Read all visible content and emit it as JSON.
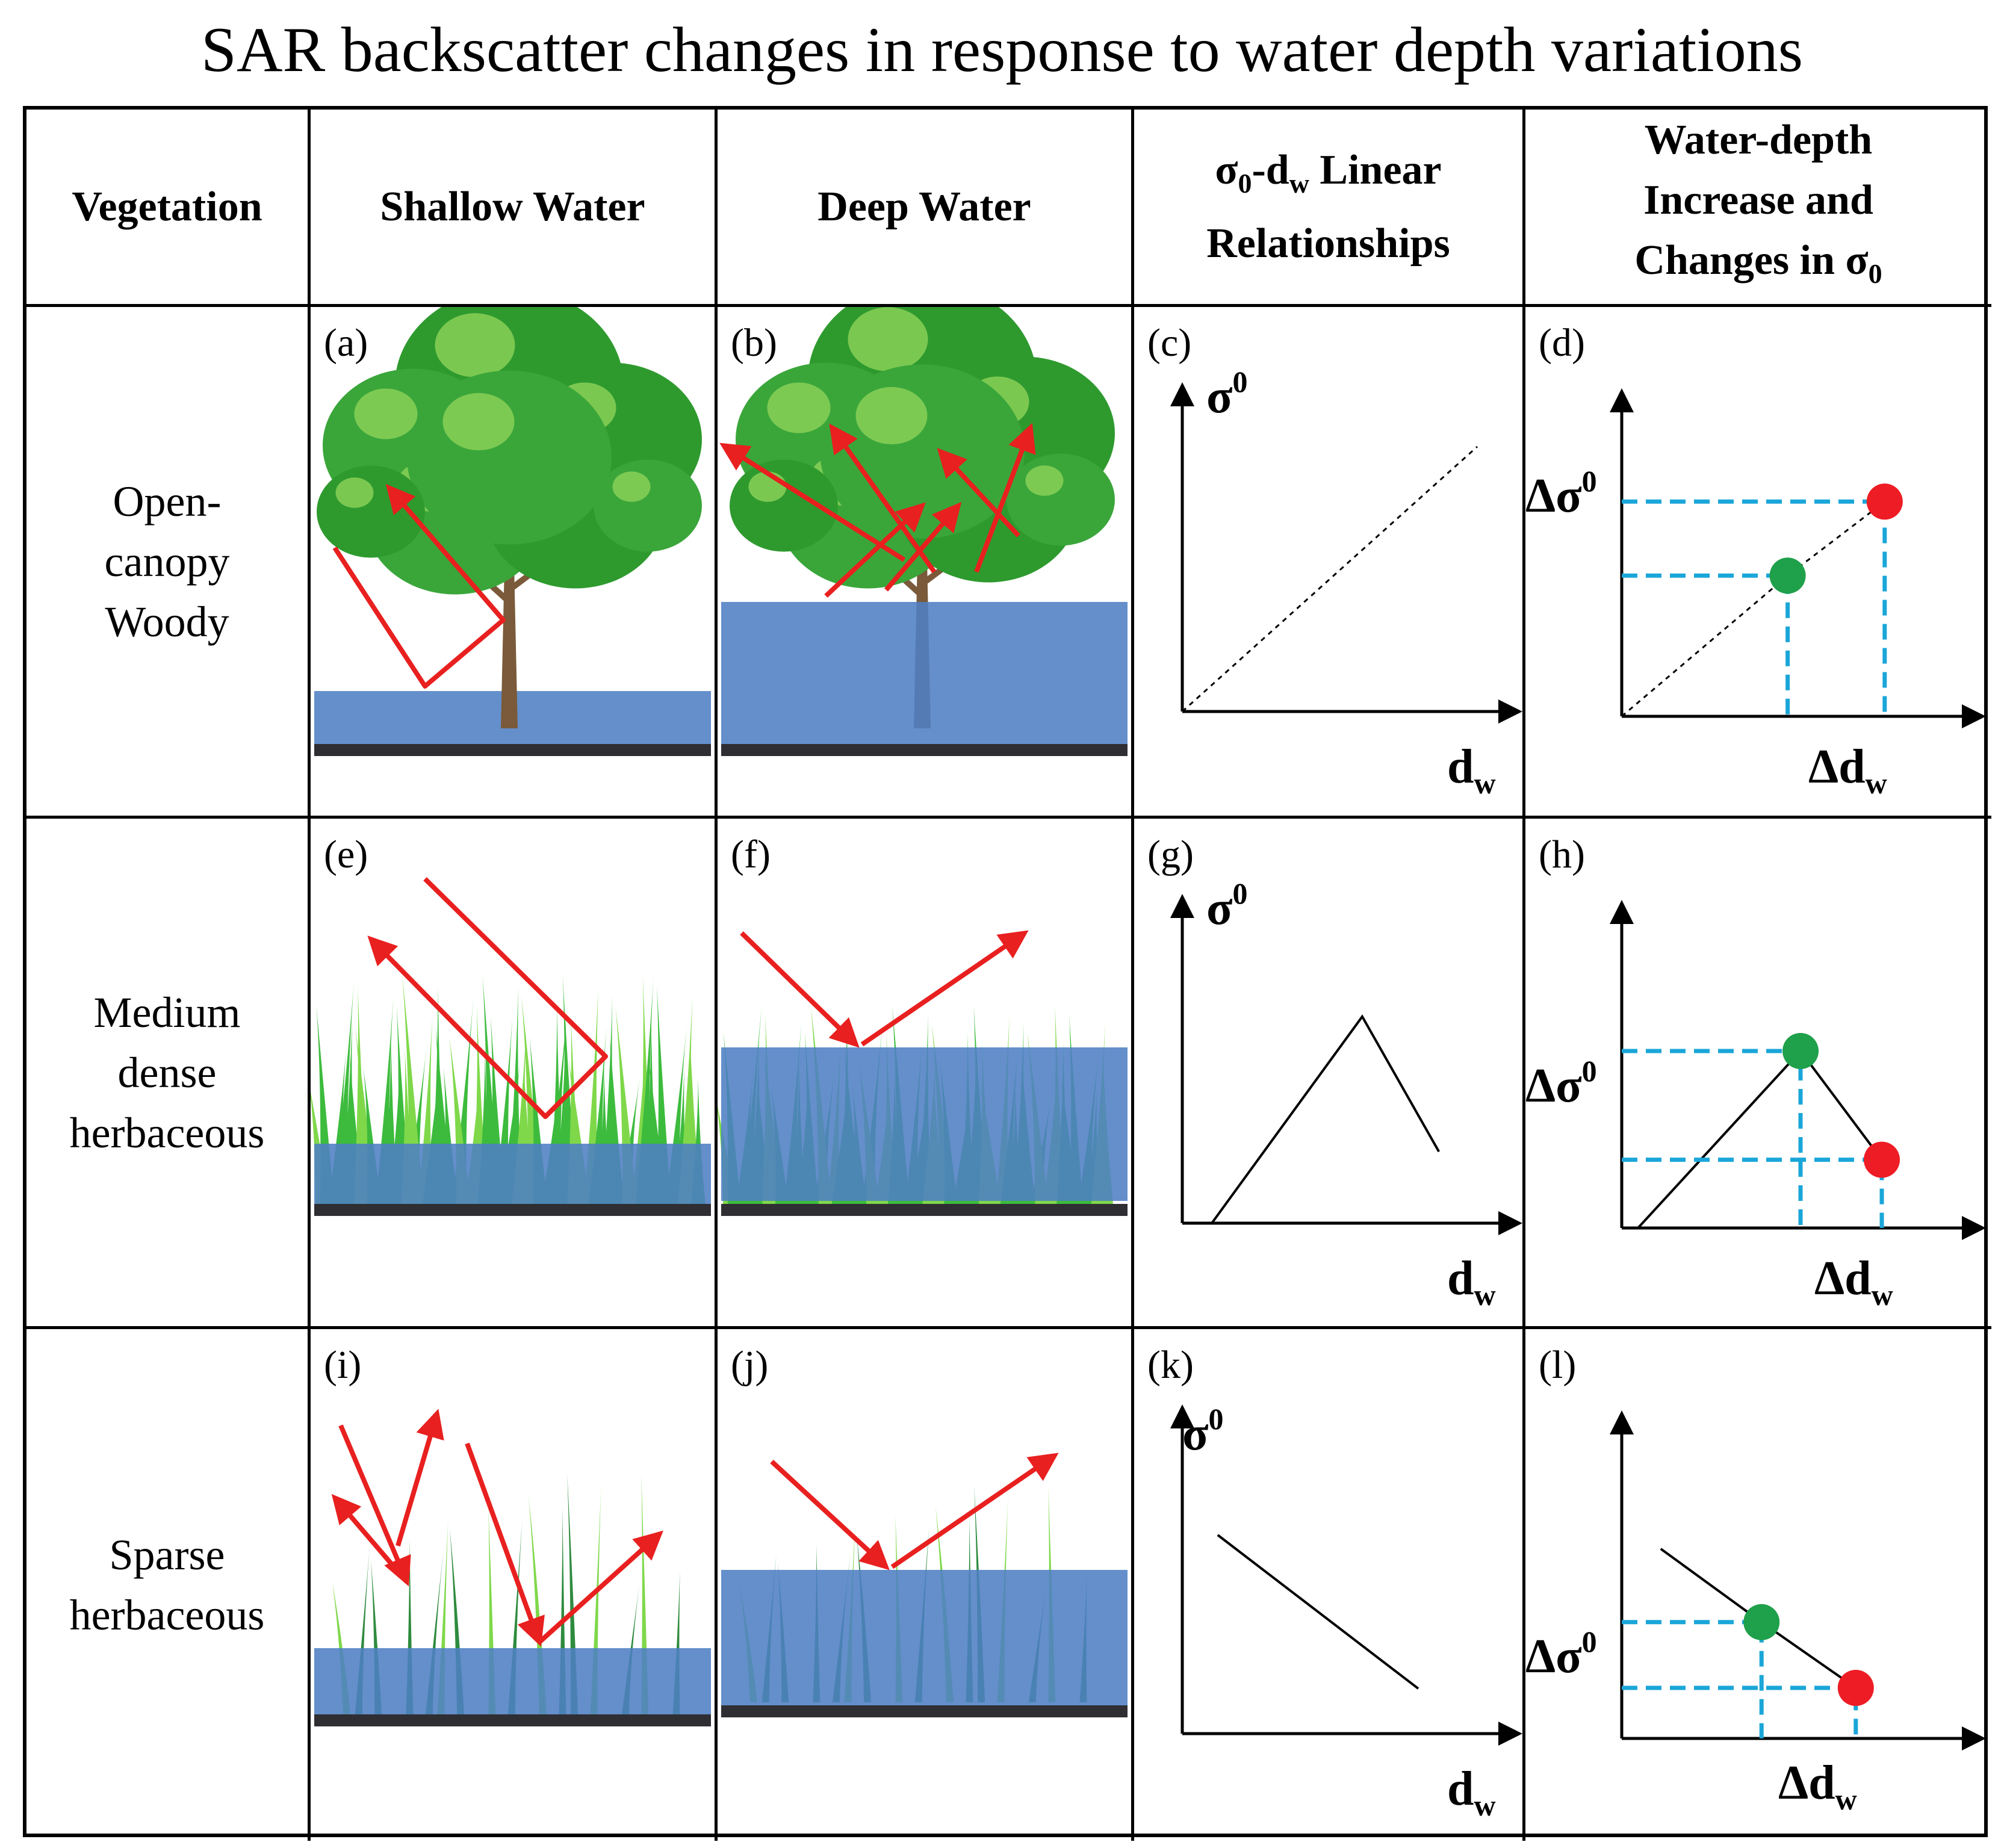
{
  "title": "SAR backscatter changes in response to water depth variations",
  "headers": {
    "vegetation": "Vegetation",
    "shallow": "Shallow Water",
    "deep": "Deep Water",
    "linear_line1_a": "σ",
    "linear_line1_sub0": "0",
    "linear_line1_b": "-d",
    "linear_line1_subw": "w",
    "linear_line1_c": " Linear",
    "linear_line2": "Relationships",
    "change_line1": "Water-depth",
    "change_line2": "Increase and",
    "change_line3_a": "Changes in σ",
    "change_line3_sub": "0"
  },
  "rows": [
    {
      "veg_lines": [
        "Open-",
        "canopy",
        "Woody"
      ]
    },
    {
      "veg_lines": [
        "Medium",
        "dense",
        "herbaceous"
      ]
    },
    {
      "veg_lines": [
        "Sparse",
        "herbaceous"
      ]
    }
  ],
  "panel_labels": [
    "(a)",
    "(b)",
    "(c)",
    "(d)",
    "(e)",
    "(f)",
    "(g)",
    "(h)",
    "(i)",
    "(j)",
    "(k)",
    "(l)"
  ],
  "axis_labels": {
    "sigma": "σ",
    "sigma_sup": "0",
    "dw": "d",
    "dw_sub": "w",
    "delta_sigma": "Δσ",
    "delta_sigma_sup": "0",
    "delta_dw": "Δd",
    "delta_dw_sub": "w"
  },
  "colors": {
    "water": "#4f7fc4",
    "ground": "#2f2f33",
    "arrow": "#e8201f",
    "guide": "#1aa6d8",
    "green_dot": "#1fa04a",
    "red_dot": "#ee1c24",
    "foliage": "#2e9a2e",
    "grass": "#3dbb3d"
  },
  "chart_data": [
    {
      "panel": "(c)",
      "type": "line",
      "xlabel": "dw",
      "ylabel": "σ0",
      "style": "dotted",
      "trend": "increasing",
      "x": [
        0,
        1
      ],
      "y": [
        0,
        1
      ]
    },
    {
      "panel": "(d)",
      "type": "line",
      "xlabel": "Δdw",
      "ylabel": "Δσ0",
      "style": "dotted",
      "trend": "increasing",
      "x": [
        0,
        0.53,
        0.84
      ],
      "y": [
        0,
        0.57,
        0.87
      ],
      "points": [
        {
          "color": "green",
          "x": 0.53,
          "y": 0.57
        },
        {
          "color": "red",
          "x": 0.84,
          "y": 0.87
        }
      ]
    },
    {
      "panel": "(g)",
      "type": "line",
      "xlabel": "dw",
      "ylabel": "σ0",
      "style": "solid",
      "trend": "increase-then-decrease",
      "x": [
        0.1,
        0.61,
        0.87
      ],
      "y": [
        0,
        0.78,
        0.27
      ]
    },
    {
      "panel": "(h)",
      "type": "line",
      "xlabel": "Δdw",
      "ylabel": "Δσ0",
      "style": "solid",
      "trend": "increase-then-decrease",
      "x": [
        0.05,
        0.55,
        0.8
      ],
      "y": [
        0,
        0.7,
        0.27
      ],
      "points": [
        {
          "color": "green",
          "x": 0.55,
          "y": 0.7
        },
        {
          "color": "red",
          "x": 0.8,
          "y": 0.27
        }
      ]
    },
    {
      "panel": "(k)",
      "type": "line",
      "xlabel": "dw",
      "ylabel": "σ0",
      "style": "solid",
      "trend": "decreasing",
      "x": [
        0.12,
        0.8
      ],
      "y": [
        0.75,
        0.17
      ]
    },
    {
      "panel": "(l)",
      "type": "line",
      "xlabel": "Δdw",
      "ylabel": "Δσ0",
      "style": "solid",
      "trend": "decreasing",
      "x": [
        0.12,
        0.43,
        0.72
      ],
      "y": [
        0.75,
        0.46,
        0.2
      ],
      "points": [
        {
          "color": "green",
          "x": 0.43,
          "y": 0.46
        },
        {
          "color": "red",
          "x": 0.72,
          "y": 0.2
        }
      ]
    }
  ]
}
